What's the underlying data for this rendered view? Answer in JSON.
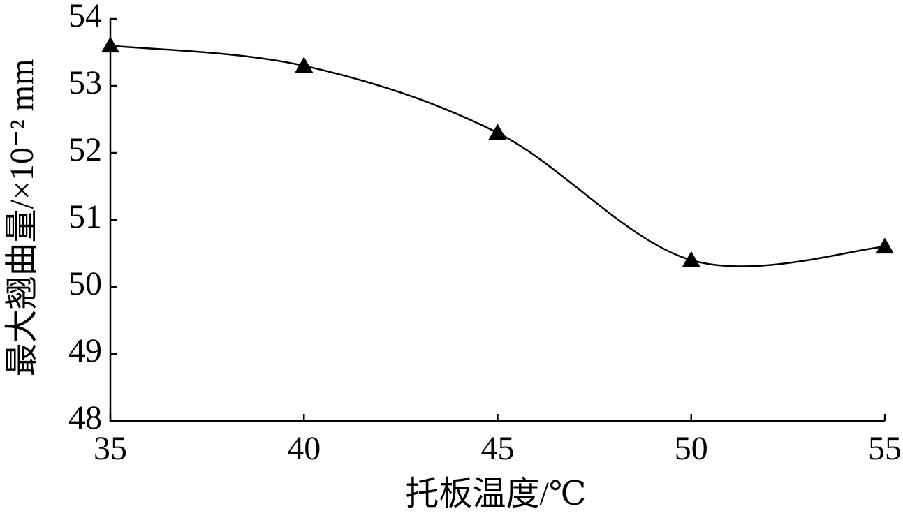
{
  "chart_data": {
    "type": "line",
    "x_label": "托板温度/℃",
    "y_label": "最大翘曲量/×10⁻² mm",
    "x": [
      35,
      40,
      45,
      50,
      55
    ],
    "series": [
      {
        "color": "#000000",
        "values": [
          53.6,
          53.3,
          52.3,
          50.4,
          50.6
        ]
      }
    ],
    "xlim": [
      35,
      55
    ],
    "xticks": [
      35,
      40,
      45,
      50,
      55
    ],
    "ylim": [
      48,
      54
    ],
    "yticks": [
      48,
      49,
      50,
      51,
      52,
      53,
      54
    ],
    "marker": "triangle",
    "smooth": true,
    "grid": false
  }
}
